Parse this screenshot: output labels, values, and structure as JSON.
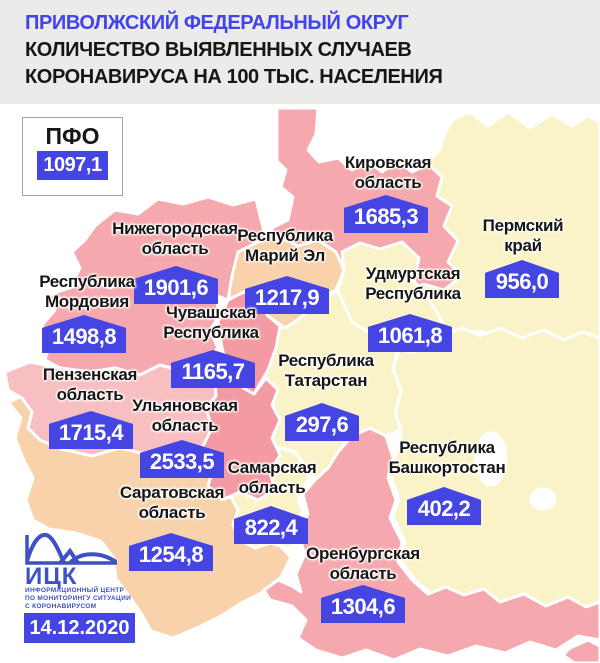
{
  "header": {
    "title": "ПРИВОЛЖСКИЙ ФЕДЕРАЛЬНЫЙ ОКРУГ",
    "subtitle_line1": "КОЛИЧЕСТВО ВЫЯВЛЕННЫХ СЛУЧАЕВ",
    "subtitle_line2": "КОРОНАВИРУСА НА 100 ТЫС. НАСЕЛЕНИЯ"
  },
  "summary": {
    "label": "ПФО",
    "value": "1097,1"
  },
  "colors": {
    "accent_blue": "#4545e4",
    "title_blue": "#4243ea",
    "logo_blue": "#3d50c4",
    "header_bg": "#ebebe9",
    "pink": "#f5a9ae",
    "pink_light": "#f8bfc3",
    "pink_deep": "#f49aa2",
    "peach": "#f8d2ab",
    "yellow": "#fbf3c8",
    "white": "#ffffff"
  },
  "regions": [
    {
      "id": "kirovskaya",
      "name": [
        "Кировская",
        "область"
      ],
      "value": "1685,3",
      "fill": "pink"
    },
    {
      "id": "permsky",
      "name": [
        "Пермский",
        "край"
      ],
      "value": "956,0",
      "fill": "yellow"
    },
    {
      "id": "nizhegorodskaya",
      "name": [
        "Нижегородская",
        "область"
      ],
      "value": "1901,6",
      "fill": "pink"
    },
    {
      "id": "mariy_el",
      "name": [
        "Республика",
        "Марий Эл"
      ],
      "value": "1217,9",
      "fill": "peach"
    },
    {
      "id": "udmurtskaya",
      "name": [
        "Удмуртская",
        "Республика"
      ],
      "value": "1061,8",
      "fill": "yellow"
    },
    {
      "id": "mordovia",
      "name": [
        "Республика",
        "Мордовия"
      ],
      "value": "1498,8",
      "fill": "pink"
    },
    {
      "id": "chuvashskaya",
      "name": [
        "Чувашская",
        "Республика"
      ],
      "value": "1165,7",
      "fill": "pink_deep"
    },
    {
      "id": "tatarstan",
      "name": [
        "Республика",
        "Татарстан"
      ],
      "value": "297,6",
      "fill": "yellow"
    },
    {
      "id": "penzenskaya",
      "name": [
        "Пензенская",
        "область"
      ],
      "value": "1715,4",
      "fill": "pink_light"
    },
    {
      "id": "ulyanovskaya",
      "name": [
        "Ульяновская",
        "область"
      ],
      "value": "2533,5",
      "fill": "pink_deep"
    },
    {
      "id": "samarskaya",
      "name": [
        "Самарская",
        "область"
      ],
      "value": "822,4",
      "fill": "yellow"
    },
    {
      "id": "bashkortostan",
      "name": [
        "Республика",
        "Башкортостан"
      ],
      "value": "402,2",
      "fill": "yellow"
    },
    {
      "id": "saratovskaya",
      "name": [
        "Саратовская",
        "область"
      ],
      "value": "1254,8",
      "fill": "peach"
    },
    {
      "id": "orenburgskaya",
      "name": [
        "Оренбургская",
        "область"
      ],
      "value": "1304,6",
      "fill": "pink"
    }
  ],
  "footer": {
    "logo_text": "ИЦК",
    "org_lines": [
      "ИНФОРМАЦИОННЫЙ ЦЕНТР",
      "ПО МОНИТОРИНГУ СИТУАЦИИ",
      "С КОРОНАВИРУСОМ"
    ],
    "date": "14.12.2020"
  }
}
